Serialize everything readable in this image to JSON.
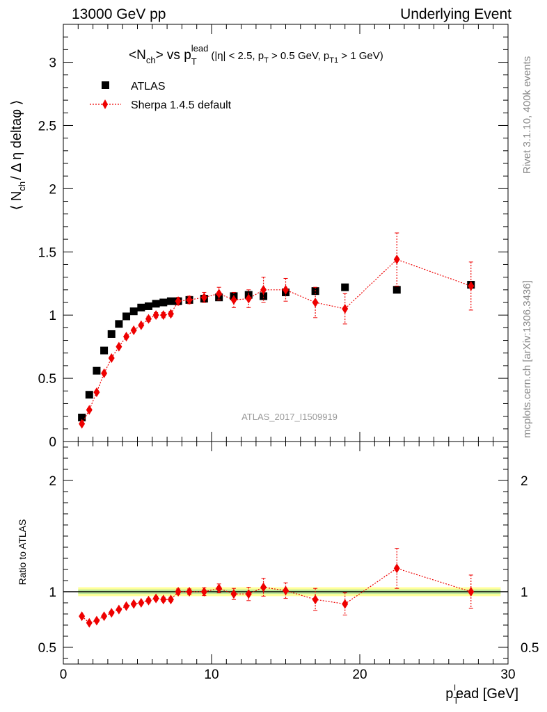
{
  "header": {
    "left": "13000 GeV pp",
    "right": "Underlying Event"
  },
  "side_labels": {
    "rivet": "Rivet 3.1.10,  400k events",
    "mcplots": "mcplots.cern.ch [arXiv:1306.3436]"
  },
  "chart_data": [
    {
      "type": "scatter",
      "title": "<Nch> vs pT lead (|η| < 2.5, pT > 0.5 GeV, pT1 > 1 GeV)",
      "title_parts": {
        "a": "<N",
        "a_sub": "ch",
        "b": "> vs p",
        "b_sub": "T",
        "b_sup": "lead",
        "c": "(|η| < 2.5, p",
        "c_sub": "T",
        "d": " > 0.5 GeV, p",
        "d_sub": "T1",
        "e": " > 1 GeV)"
      },
      "ylabel": "⟨ N",
      "ylabel_sub": "ch",
      "ylabel_rest": "/ Δ η deltaφ ⟩",
      "watermark": "ATLAS_2017_I1509919",
      "xlim": [
        0,
        30
      ],
      "ylim": [
        0,
        3.3
      ],
      "yticks": [
        "0",
        "0.5",
        "1",
        "1.5",
        "2",
        "2.5",
        "3"
      ],
      "legend_position": "top-left",
      "series": [
        {
          "name": "ATLAS",
          "color": "#000000",
          "marker": "square",
          "x": [
            1.25,
            1.75,
            2.25,
            2.75,
            3.25,
            3.75,
            4.25,
            4.75,
            5.25,
            5.75,
            6.25,
            6.75,
            7.25,
            7.75,
            8.5,
            9.5,
            10.5,
            11.5,
            12.5,
            13.5,
            15.0,
            17.0,
            19.0,
            22.5,
            27.5
          ],
          "y": [
            0.19,
            0.37,
            0.56,
            0.72,
            0.85,
            0.93,
            0.99,
            1.03,
            1.06,
            1.07,
            1.09,
            1.1,
            1.11,
            1.11,
            1.12,
            1.13,
            1.14,
            1.15,
            1.16,
            1.15,
            1.18,
            1.19,
            1.22,
            1.2,
            1.24
          ],
          "err": [
            0.005,
            0.005,
            0.005,
            0.005,
            0.005,
            0.005,
            0.005,
            0.005,
            0.005,
            0.005,
            0.005,
            0.005,
            0.005,
            0.005,
            0.005,
            0.005,
            0.005,
            0.01,
            0.01,
            0.01,
            0.01,
            0.01,
            0.015,
            0.02,
            0.03
          ]
        },
        {
          "name": "Sherpa 1.4.5 default",
          "color": "#ee0000",
          "marker": "diamond",
          "x": [
            1.25,
            1.75,
            2.25,
            2.75,
            3.25,
            3.75,
            4.25,
            4.75,
            5.25,
            5.75,
            6.25,
            6.75,
            7.25,
            7.75,
            8.5,
            9.5,
            10.5,
            11.5,
            12.5,
            13.5,
            15.0,
            17.0,
            19.0,
            22.5,
            27.5
          ],
          "y": [
            0.14,
            0.25,
            0.39,
            0.54,
            0.66,
            0.75,
            0.83,
            0.88,
            0.92,
            0.97,
            1.0,
            1.0,
            1.01,
            1.11,
            1.12,
            1.14,
            1.17,
            1.12,
            1.13,
            1.2,
            1.2,
            1.1,
            1.05,
            1.44,
            1.23
          ],
          "err": [
            0.01,
            0.01,
            0.01,
            0.01,
            0.01,
            0.01,
            0.01,
            0.01,
            0.01,
            0.02,
            0.02,
            0.02,
            0.02,
            0.03,
            0.03,
            0.04,
            0.05,
            0.06,
            0.07,
            0.1,
            0.09,
            0.12,
            0.12,
            0.21,
            0.19
          ]
        }
      ]
    },
    {
      "type": "scatter",
      "title": "",
      "ylabel": "Ratio to ATLAS",
      "xlabel": "p",
      "xlabel_sub": "T",
      "xlabel_sup": "l",
      "xlabel_rest": "ead [GeV]",
      "xlim": [
        0,
        30
      ],
      "ylim": [
        0.35,
        2.35
      ],
      "xticks": [
        "0",
        "10",
        "20",
        "30"
      ],
      "yticks": [
        "0.5",
        "1",
        "2"
      ],
      "reference": 1.0,
      "band_inner": 0.02,
      "band_outer": 0.04,
      "series": [
        {
          "name": "Sherpa 1.4.5 default",
          "color": "#ee0000",
          "marker": "diamond",
          "x": [
            1.25,
            1.75,
            2.25,
            2.75,
            3.25,
            3.75,
            4.25,
            4.75,
            5.25,
            5.75,
            6.25,
            6.75,
            7.25,
            7.75,
            8.5,
            9.5,
            10.5,
            11.5,
            12.5,
            13.5,
            15.0,
            17.0,
            19.0,
            22.5,
            27.5
          ],
          "y": [
            0.78,
            0.72,
            0.74,
            0.78,
            0.81,
            0.84,
            0.87,
            0.89,
            0.9,
            0.92,
            0.94,
            0.93,
            0.93,
            1.0,
            1.0,
            1.0,
            1.03,
            0.98,
            0.98,
            1.04,
            1.01,
            0.93,
            0.89,
            1.21,
            1.0
          ],
          "err": [
            0.01,
            0.01,
            0.01,
            0.01,
            0.01,
            0.01,
            0.01,
            0.01,
            0.01,
            0.02,
            0.02,
            0.02,
            0.02,
            0.025,
            0.025,
            0.035,
            0.04,
            0.05,
            0.06,
            0.08,
            0.07,
            0.1,
            0.1,
            0.18,
            0.15
          ]
        }
      ]
    }
  ]
}
